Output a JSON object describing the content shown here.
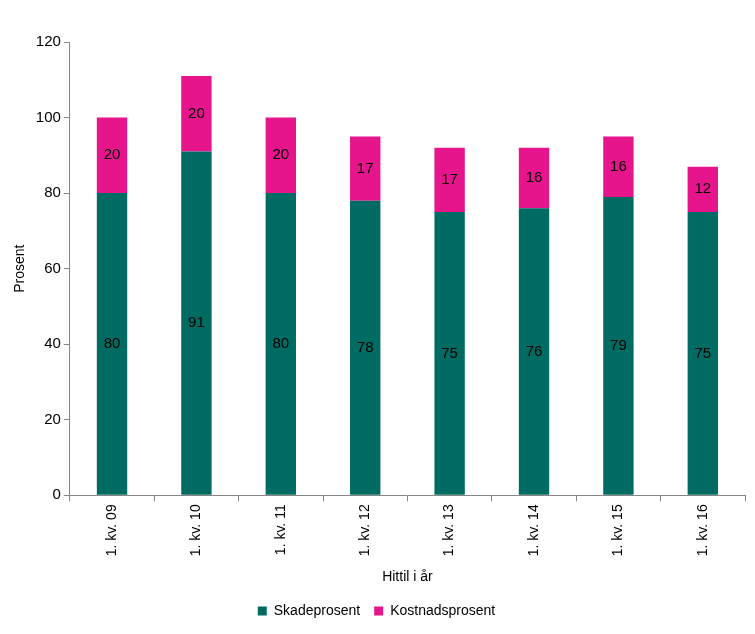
{
  "chart_data": {
    "type": "bar",
    "categories": [
      "1. kv. 09",
      "1. kv. 10",
      "1. kv. 11",
      "1. kv. 12",
      "1. kv. 13",
      "1. kv. 14",
      "1. kv. 15",
      "1. kv. 16"
    ],
    "series": [
      {
        "name": "Skadeprosent",
        "color": "#006b63",
        "values": [
          80,
          91,
          80,
          78,
          75,
          76,
          79,
          75
        ]
      },
      {
        "name": "Kostnadsprosent",
        "color": "#e6158c",
        "values": [
          20,
          20,
          20,
          17,
          17,
          16,
          16,
          12
        ]
      }
    ],
    "x_label": "Hittil i år",
    "y_label": "Prosent",
    "ylim": [
      0,
      120
    ],
    "yticks": [
      0,
      20,
      40,
      60,
      80,
      100,
      120
    ],
    "stacked": true,
    "data_labels": true,
    "grid": false,
    "legend": "bottom"
  }
}
